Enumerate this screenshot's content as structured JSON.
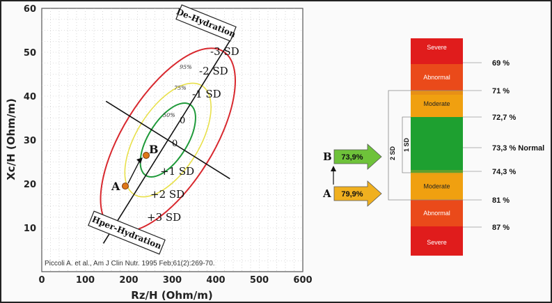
{
  "chart_data": [
    {
      "type": "scatter",
      "title": "",
      "xlabel": "Rz/H (Ohm/m)",
      "ylabel": "Xc/H (Ohm/m)",
      "xlim": [
        0,
        600
      ],
      "ylim": [
        0,
        60
      ],
      "x_ticks": [
        "0",
        "100",
        "200",
        "300",
        "400",
        "500",
        "600"
      ],
      "y_ticks": [
        "10",
        "20",
        "30",
        "40",
        "50",
        "60"
      ],
      "grid": true,
      "center": [
        290,
        30
      ],
      "tolerance_ellipses": [
        {
          "name": "50%",
          "color": "#1f9a3a"
        },
        {
          "name": "75%",
          "color": "#e8e04a"
        },
        {
          "name": "95%",
          "color": "#d8282e"
        }
      ],
      "points": [
        {
          "label": "A",
          "x": 192,
          "y": 19.5,
          "color": "#e07818"
        },
        {
          "label": "B",
          "x": 240,
          "y": 26.5,
          "color": "#e07818"
        }
      ],
      "sd_labels": [
        "-3 SD",
        "-2 SD",
        "-1 SD",
        "0",
        "0",
        "+1 SD",
        "+2 SD",
        "+3 SD"
      ],
      "percent_labels": [
        "95%",
        "75%",
        "50%"
      ],
      "annotations": {
        "top_box": "De-Hydration",
        "bottom_box": "Hper-Hydration",
        "citation": "Piccoli A. et al., Am J Clin Nutr. 1995 Feb;61(2):269-70."
      }
    },
    {
      "type": "table",
      "bands": [
        {
          "label": "Severe",
          "color": "#e01c1c"
        },
        {
          "label": "Abnormal",
          "color": "#ea4a1a"
        },
        {
          "label": "Moderate",
          "color": "#f0a010"
        },
        {
          "label": "",
          "color": "#1ea030"
        },
        {
          "label": "Moderate",
          "color": "#f0a010"
        },
        {
          "label": "Abnormal",
          "color": "#ea4a1a"
        },
        {
          "label": "Severe",
          "color": "#e01c1c"
        }
      ],
      "thresholds": [
        "69 %",
        "71 %",
        "72,7 %",
        "73,3 % Normal",
        "74,3 %",
        "81 %",
        "87 %"
      ],
      "sd_brackets": [
        "2 SD",
        "1 SD"
      ],
      "markers": [
        {
          "label": "B",
          "value": "73,9%",
          "color": "#6ec23a"
        },
        {
          "label": "A",
          "value": "79,9%",
          "color": "#f0b020"
        }
      ]
    }
  ]
}
